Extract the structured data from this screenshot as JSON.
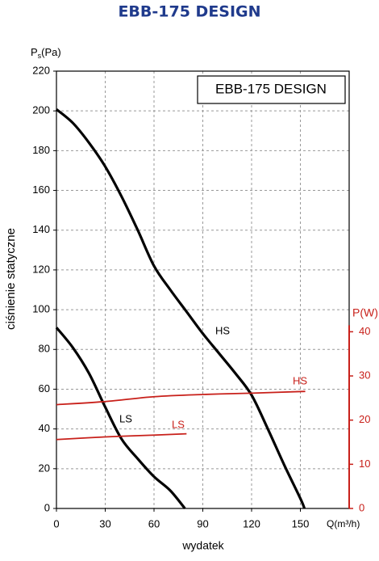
{
  "chart_data": {
    "type": "line",
    "title": "EBB-175 DESIGN",
    "legend_box": "EBB-175 DESIGN",
    "y_label": "ciśnienie statyczne",
    "x_label": "wydatek",
    "y_unit": {
      "symbol": "P",
      "subscript": "s",
      "unit": "(Pa)"
    },
    "x_unit": "Q(m³/h)",
    "y2_unit": "P(W)",
    "xlim": [
      0,
      180
    ],
    "xticks": [
      0,
      30,
      60,
      90,
      120,
      150
    ],
    "ylim": [
      0,
      220
    ],
    "yticks": [
      0,
      20,
      40,
      60,
      80,
      100,
      120,
      140,
      160,
      180,
      200,
      220
    ],
    "y2lim": [
      0,
      99
    ],
    "y2ticks": [
      0,
      10,
      20,
      30,
      40
    ],
    "grid": true,
    "series": [
      {
        "name": "HS",
        "color": "#000000",
        "x": [
          0,
          10,
          20,
          30,
          40,
          50,
          60,
          70,
          80,
          90,
          100,
          110,
          120,
          130,
          140,
          150,
          152.5
        ],
        "values": [
          200.8,
          194,
          184,
          172,
          157,
          140,
          122,
          110,
          99,
          88,
          78,
          68,
          57,
          40,
          22,
          5,
          0
        ]
      },
      {
        "name": "LS",
        "color": "#000000",
        "x": [
          0,
          10,
          20,
          30,
          40,
          50,
          60,
          70,
          79
        ],
        "values": [
          91,
          81,
          68,
          51,
          35,
          25,
          16,
          9,
          0
        ]
      },
      {
        "name": "HS",
        "color": "#c8201a",
        "axis": "y2",
        "x": [
          0,
          30,
          60,
          90,
          120,
          153
        ],
        "values": [
          23.5,
          24.2,
          25.3,
          25.8,
          26.1,
          26.5
        ]
      },
      {
        "name": "LS",
        "color": "#c8201a",
        "axis": "y2",
        "x": [
          0,
          30,
          60,
          80
        ],
        "values": [
          15.6,
          16.2,
          16.6,
          16.9
        ]
      }
    ]
  }
}
